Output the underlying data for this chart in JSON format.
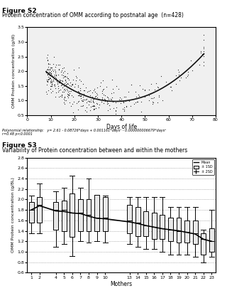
{
  "fig_s2": {
    "title_bold": "Figure S2",
    "title_sub": "Protein concentration of OMM according to postnatal age  (n=428)",
    "xlabel": "Days of life",
    "ylabel": "OMM Protein concentration (g/dl)",
    "xlim": [
      0,
      80
    ],
    "ylim": [
      0.5,
      3.5
    ],
    "yticks": [
      0.5,
      1.0,
      1.5,
      2.0,
      2.5,
      3.0,
      3.5
    ],
    "xticks": [
      0,
      10,
      20,
      30,
      40,
      50,
      60,
      70,
      80
    ],
    "poly_eq": "Polynomial relationship:   y= 2.61 - 0.08726*days + 0.001161*days² - 0.000000006679*days³",
    "poly_eq2": "r=0.48 p<0.0001",
    "poly_coeffs": [
      2.61,
      -0.08726,
      0.001161,
      -6.679e-09
    ],
    "scatter_color": "#222222",
    "line_color": "#111111",
    "bg_color": "#f0f0f0"
  },
  "fig_s3": {
    "title_bold": "Figure S3",
    "title_sub": "Variability of Protein concentration between and within the mothers",
    "xlabel": "Mothers",
    "ylabel": "OMM Protein concentration (g/8L)",
    "xlim": [
      0.5,
      23.5
    ],
    "ylim": [
      0.6,
      2.8
    ],
    "yticks": [
      0.6,
      0.8,
      1.0,
      1.2,
      1.4,
      1.6,
      1.8,
      2.0,
      2.2,
      2.4,
      2.6,
      2.8
    ],
    "categories": [
      1,
      2,
      4,
      5,
      6,
      7,
      8,
      9,
      10,
      13,
      14,
      15,
      16,
      17,
      18,
      19,
      20,
      21,
      22,
      23
    ],
    "means": [
      1.8,
      1.9,
      1.8,
      1.8,
      1.75,
      1.75,
      1.7,
      1.65,
      1.65,
      1.6,
      1.55,
      1.5,
      1.48,
      1.45,
      1.42,
      1.4,
      1.38,
      1.35,
      1.25,
      1.2
    ],
    "q1": [
      1.55,
      1.55,
      1.42,
      1.4,
      1.28,
      1.4,
      1.4,
      1.4,
      1.4,
      1.35,
      1.3,
      1.3,
      1.25,
      1.25,
      1.2,
      1.18,
      1.18,
      1.15,
      0.95,
      1.0
    ],
    "q3": [
      1.95,
      2.05,
      1.95,
      1.98,
      2.12,
      2.0,
      2.0,
      2.08,
      2.05,
      1.9,
      1.85,
      1.78,
      1.75,
      1.7,
      1.65,
      1.65,
      1.6,
      1.6,
      1.35,
      1.45
    ],
    "whislo": [
      1.35,
      1.35,
      1.1,
      1.15,
      0.92,
      1.2,
      1.18,
      1.2,
      1.18,
      1.15,
      1.1,
      1.05,
      1.05,
      1.0,
      0.95,
      0.95,
      0.95,
      0.9,
      0.8,
      0.9
    ],
    "whishi": [
      2.07,
      2.3,
      2.15,
      2.22,
      2.45,
      2.22,
      2.4,
      2.08,
      2.07,
      2.05,
      2.05,
      2.04,
      2.05,
      2.04,
      1.85,
      1.85,
      1.85,
      1.85,
      1.42,
      1.8
    ],
    "line_means": [
      1.8,
      1.88,
      1.78,
      1.77,
      1.74,
      1.73,
      1.68,
      1.64,
      1.63,
      1.57,
      1.54,
      1.5,
      1.47,
      1.44,
      1.42,
      1.4,
      1.37,
      1.34,
      1.24,
      1.2
    ],
    "box_color": "#e8e8e8",
    "line_color": "#111111",
    "legend_labels": [
      "Mean",
      "± 1SD",
      "± 2SD"
    ]
  }
}
